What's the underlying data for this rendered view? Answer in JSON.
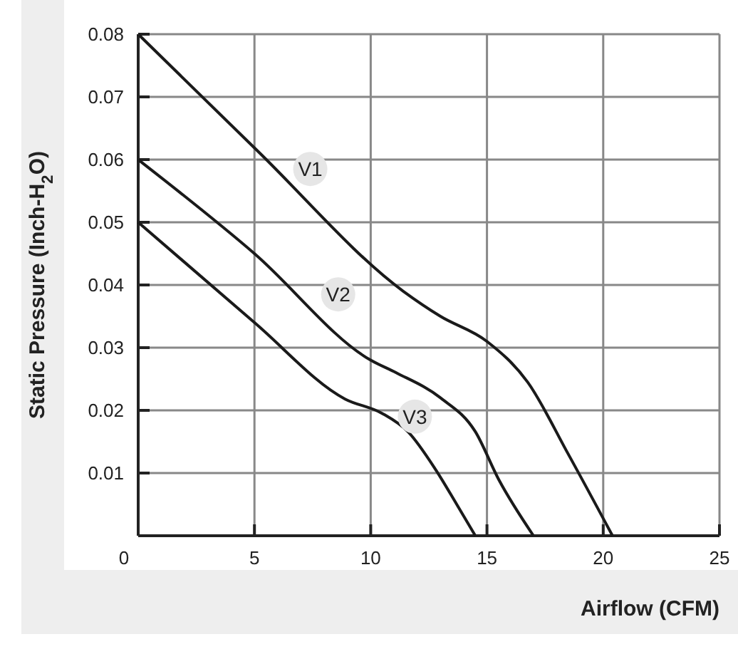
{
  "chart_data": {
    "type": "line",
    "xlabel": "Airflow (CFM)",
    "ylabel": "Static Pressure (Inch-H$_{2}$O)",
    "xlim": [
      0,
      25
    ],
    "xticks": [
      0,
      5,
      10,
      15,
      20,
      25
    ],
    "ylim": [
      0,
      0.08
    ],
    "yticks": [
      {
        "value": 0,
        "label": null
      },
      0.01,
      0.02,
      0.03,
      0.04,
      0.05,
      0.06,
      0.07,
      0.08
    ],
    "grid": true,
    "marker": "none",
    "line_style": "solid",
    "series": [
      {
        "color": "#1a1a1a",
        "x": [
          0,
          5.1,
          11.4,
          13,
          15,
          16.75,
          18.5,
          20.4
        ],
        "values": [
          0.08,
          0.0615,
          0.039,
          0.035,
          0.031,
          0.0245,
          0.013,
          0
        ]
      },
      {
        "color": "#1a1a1a",
        "x": [
          0,
          5,
          10,
          11.1,
          13,
          14.5,
          15.5,
          17
        ],
        "values": [
          0.06,
          0.045,
          0.028,
          0.026,
          0.022,
          0.0166,
          0.009,
          0
        ]
      },
      {
        "color": "#1a1a1a",
        "x": [
          0,
          5,
          8.9,
          10.5,
          11.6,
          12.8,
          13.7,
          14.5
        ],
        "values": [
          0.05,
          0.034,
          0.0218,
          0.0195,
          0.0166,
          0.0105,
          0.005,
          0
        ]
      }
    ],
    "annotations": [
      {
        "text": "V1",
        "x": 7.4,
        "y": 0.0585
      },
      {
        "text": "V2",
        "x": 8.6,
        "y": 0.0385
      },
      {
        "text": "V3",
        "x": 11.9,
        "y": 0.019
      }
    ]
  }
}
